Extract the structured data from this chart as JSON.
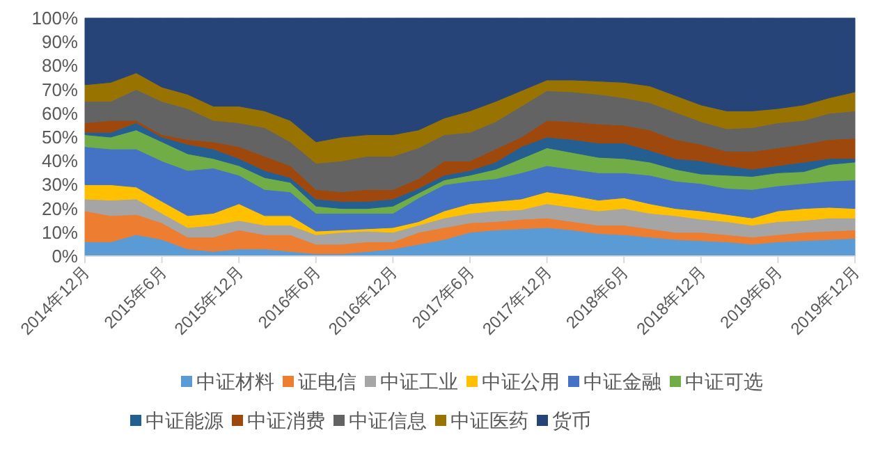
{
  "chart_data": {
    "type": "area",
    "stacked": true,
    "legend": "bottom",
    "x": [
      "2014-12",
      "2015-02",
      "2015-04",
      "2015-06",
      "2015-08",
      "2015-10",
      "2015-12",
      "2016-02",
      "2016-04",
      "2016-06",
      "2016-08",
      "2016-10",
      "2016-12",
      "2017-02",
      "2017-04",
      "2017-06",
      "2017-08",
      "2017-10",
      "2017-12",
      "2018-02",
      "2018-04",
      "2018-06",
      "2018-08",
      "2018-10",
      "2018-12",
      "2019-02",
      "2019-04",
      "2019-06",
      "2019-08",
      "2019-10",
      "2019-12"
    ],
    "xlim": [
      "2014-12",
      "2019-12"
    ],
    "xticks": [
      {
        "value": "2014-12",
        "label": "2014年12月"
      },
      {
        "value": "2015-06",
        "label": "2015年6月"
      },
      {
        "value": "2015-12",
        "label": "2015年12月"
      },
      {
        "value": "2016-06",
        "label": "2016年6月"
      },
      {
        "value": "2016-12",
        "label": "2016年12月"
      },
      {
        "value": "2017-06",
        "label": "2017年6月"
      },
      {
        "value": "2017-12",
        "label": "2017年12月"
      },
      {
        "value": "2018-06",
        "label": "2018年6月"
      },
      {
        "value": "2018-12",
        "label": "2018年12月"
      },
      {
        "value": "2019-06",
        "label": "2019年6月"
      },
      {
        "value": "2019-12",
        "label": "2019年12月"
      }
    ],
    "ylim": [
      0,
      100
    ],
    "yticks": [
      {
        "value": 0,
        "label": "0%"
      },
      {
        "value": 10,
        "label": "10%"
      },
      {
        "value": 20,
        "label": "20%"
      },
      {
        "value": 30,
        "label": "30%"
      },
      {
        "value": 40,
        "label": "40%"
      },
      {
        "value": 50,
        "label": "50%"
      },
      {
        "value": 60,
        "label": "60%"
      },
      {
        "value": 70,
        "label": "70%"
      },
      {
        "value": 80,
        "label": "80%"
      },
      {
        "value": 90,
        "label": "90%"
      },
      {
        "value": 100,
        "label": "100%"
      }
    ],
    "series": [
      {
        "name": "中证材料",
        "color": "#5b9bd5",
        "values": [
          6,
          6,
          9,
          7,
          3,
          2,
          3,
          3,
          2,
          1,
          1,
          2,
          3,
          5,
          7,
          10,
          11,
          11.5,
          12,
          11,
          9.5,
          9,
          8,
          7,
          6.5,
          6,
          5,
          6,
          6.5,
          7,
          7.5
        ]
      },
      {
        "name": "证电信",
        "color": "#ed7d31",
        "values": [
          13,
          11,
          8.5,
          7,
          5,
          6,
          8,
          6,
          7,
          4,
          4,
          4,
          3,
          5,
          5,
          4,
          3.5,
          4,
          4,
          3.5,
          3.5,
          4,
          3.5,
          3,
          3.5,
          3,
          3,
          3,
          3.5,
          3.5,
          3.5
        ]
      },
      {
        "name": "中证工业",
        "color": "#a5a5a5",
        "values": [
          5,
          6.5,
          6.5,
          4,
          4,
          5,
          4,
          4,
          4,
          4,
          5,
          4.5,
          4,
          3,
          4,
          4,
          4.5,
          4,
          6,
          6,
          6,
          7,
          6.5,
          7,
          5.5,
          5.5,
          5,
          5.5,
          5,
          5.5,
          5
        ]
      },
      {
        "name": "中证公用",
        "color": "#ffc000",
        "values": [
          6,
          6.5,
          5,
          5,
          5,
          5,
          7,
          4,
          4,
          1.5,
          1,
          1,
          2,
          1.5,
          3,
          4,
          4,
          4.5,
          5,
          5,
          4.5,
          4.5,
          4,
          3,
          3.5,
          3,
          3,
          4.5,
          5,
          4.5,
          4
        ]
      },
      {
        "name": "中证金融",
        "color": "#4472c4",
        "values": [
          16,
          15,
          16,
          17,
          19,
          19,
          12,
          11,
          10,
          7.5,
          7,
          6.5,
          6,
          10,
          11,
          9.5,
          9.5,
          11,
          11,
          11,
          11.5,
          10.5,
          12,
          11.5,
          11.5,
          11,
          12,
          10.5,
          10.5,
          11,
          12
        ]
      },
      {
        "name": "中证可选",
        "color": "#70ad47",
        "values": [
          5,
          5,
          8,
          8,
          7,
          4,
          4,
          5,
          4,
          3,
          2,
          2,
          3,
          2,
          2,
          2.5,
          4,
          6,
          7.5,
          7,
          6.5,
          6,
          5.5,
          5,
          4,
          5.5,
          5.5,
          5.5,
          5,
          7,
          7.5
        ]
      },
      {
        "name": "中证能源",
        "color": "#255e91",
        "values": [
          1,
          2,
          3,
          2,
          4,
          4,
          3,
          3,
          2,
          3,
          3,
          3,
          3,
          2,
          2,
          2,
          3,
          5,
          4.5,
          5.5,
          6,
          6.5,
          5,
          4.5,
          5.5,
          4,
          3,
          3,
          4,
          2.5,
          1.5
        ]
      },
      {
        "name": "中证消费",
        "color": "#9e480e",
        "values": [
          4,
          5,
          1,
          1,
          2,
          3,
          5,
          6,
          5,
          4,
          4,
          5,
          4,
          4,
          6,
          4,
          5.5,
          4,
          7,
          7.5,
          8,
          7.5,
          8.5,
          8,
          7,
          6,
          7.5,
          7.5,
          7.5,
          8,
          8.5
        ]
      },
      {
        "name": "中证信息",
        "color": "#636363",
        "values": [
          9,
          8,
          13,
          14,
          13,
          9,
          10,
          12,
          10,
          11,
          13,
          14,
          14,
          13,
          11,
          12,
          11.5,
          13,
          12.5,
          12.5,
          12.5,
          11.5,
          11.5,
          11.5,
          9.5,
          9.5,
          10,
          10.5,
          10,
          11,
          11.5
        ]
      },
      {
        "name": "中证医药",
        "color": "#997300",
        "values": [
          7,
          8,
          7,
          6,
          6,
          6,
          7,
          7,
          9,
          9,
          10,
          9,
          9,
          7.5,
          7,
          9,
          8.5,
          6.5,
          4.5,
          5,
          5.5,
          6.5,
          7,
          7,
          7,
          7.5,
          7,
          6,
          6.5,
          6.5,
          8
        ]
      },
      {
        "name": "货币",
        "color": "#264478",
        "values": [
          28,
          27,
          23,
          29,
          32,
          37,
          37,
          39,
          43,
          52,
          50,
          49,
          49,
          47,
          42,
          39,
          35,
          30.5,
          26,
          26,
          26.5,
          27,
          28.5,
          32.5,
          36.5,
          39,
          39,
          38,
          36.5,
          33.5,
          31
        ]
      }
    ]
  }
}
